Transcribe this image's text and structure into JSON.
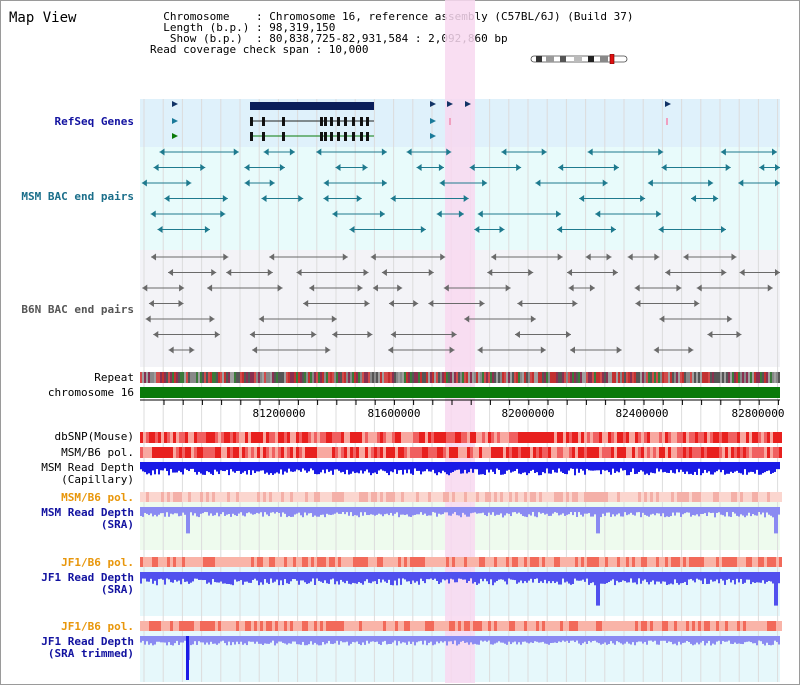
{
  "view": {
    "title": "Map View",
    "info_lines": [
      "  Chromosome    : Chromosome 16, reference assembly (C57BL/6J) (Build 37)",
      "  Length (b.p.) : 98,319,150",
      "   Show (b.p.)  : 80,838,725-82,931,584 : 2,092,860 bp",
      "Read coverage check span : 10,000"
    ]
  },
  "tracks": {
    "refseq": "RefSeq Genes",
    "msm_bac": "MSM BAC end pairs",
    "b6n_bac": "B6N BAC end pairs",
    "repeat": "Repeat",
    "chromosome": "chromosome 16",
    "dbsnp": "dbSNP(Mouse)",
    "msm_pol": "MSM/B6 pol.",
    "msm_depth_cap": "MSM Read Depth\n(Capillary)",
    "msm_pol2": "MSM/B6 pol.",
    "msm_depth_sra": "MSM Read Depth\n(SRA)",
    "jf1_pol": "JF1/B6 pol.",
    "jf1_depth_sra": "JF1 Read Depth\n(SRA)",
    "jf1_pol2": "JF1/B6 pol.",
    "jf1_depth_trim": "JF1 Read Depth\n(SRA trimmed)"
  },
  "axis": {
    "ticks": [
      "81200000",
      "81600000",
      "82000000",
      "82400000",
      "82800000"
    ]
  },
  "colors": {
    "refseq_bg": "#dff1fb",
    "bac_bg": "#e8fbfb",
    "b6n_bg": "#f3f3f7",
    "highlight": "#f8d8f0",
    "chromosome": "#0a7a0a",
    "depth_blue": "#1a1ae6",
    "depth_light": "#7a7af0",
    "label_blue": "#1212a0",
    "label_teal": "#1a6e8a",
    "label_orange": "#e8960a"
  }
}
